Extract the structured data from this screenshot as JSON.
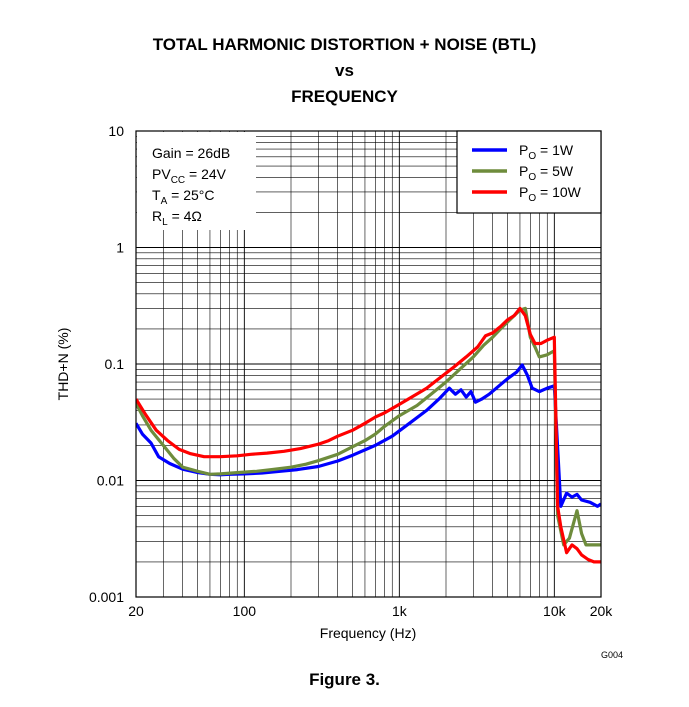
{
  "figure_caption": "Figure 3.",
  "chart_data": {
    "type": "line",
    "title_lines": [
      "TOTAL HARMONIC DISTORTION + NOISE (BTL)",
      "vs",
      "FREQUENCY"
    ],
    "xlabel": "Frequency (Hz)",
    "ylabel": "THD+N (%)",
    "x_scale": "log",
    "y_scale": "log",
    "xlim": [
      20,
      20000
    ],
    "ylim": [
      0.001,
      10
    ],
    "x_ticks": [
      {
        "value": 20,
        "label": "20"
      },
      {
        "value": 100,
        "label": "100"
      },
      {
        "value": 1000,
        "label": "1k"
      },
      {
        "value": 10000,
        "label": "10k"
      },
      {
        "value": 20000,
        "label": "20k"
      }
    ],
    "y_ticks": [
      {
        "value": 10,
        "label": "10"
      },
      {
        "value": 1,
        "label": "1"
      },
      {
        "value": 0.1,
        "label": "0.1"
      },
      {
        "value": 0.01,
        "label": "0.01"
      },
      {
        "value": 0.001,
        "label": "0.001"
      }
    ],
    "grid": true,
    "legend_position": "top-right",
    "conditions": [
      {
        "prefix": "Gain = 26dB",
        "sub": "",
        "suffix": ""
      },
      {
        "prefix": "PV",
        "sub": "CC",
        "suffix": " = 24V"
      },
      {
        "prefix": "T",
        "sub": "A",
        "suffix": " = 25°C"
      },
      {
        "prefix": "R",
        "sub": "L",
        "suffix": " = 4Ω"
      }
    ],
    "figure_id": "G004",
    "series": [
      {
        "name_prefix": "P",
        "name_sub": "O",
        "name_suffix": " = 1W",
        "color": "#0000ff",
        "points": [
          [
            20,
            0.031
          ],
          [
            22,
            0.025
          ],
          [
            25,
            0.021
          ],
          [
            28,
            0.016
          ],
          [
            33,
            0.014
          ],
          [
            40,
            0.0125
          ],
          [
            50,
            0.0117
          ],
          [
            60,
            0.0113
          ],
          [
            70,
            0.0112
          ],
          [
            80,
            0.0113
          ],
          [
            100,
            0.0114
          ],
          [
            130,
            0.0116
          ],
          [
            170,
            0.012
          ],
          [
            220,
            0.0124
          ],
          [
            300,
            0.0132
          ],
          [
            400,
            0.0147
          ],
          [
            500,
            0.0165
          ],
          [
            700,
            0.02
          ],
          [
            900,
            0.024
          ],
          [
            1200,
            0.032
          ],
          [
            1500,
            0.04
          ],
          [
            1800,
            0.05
          ],
          [
            2100,
            0.062
          ],
          [
            2300,
            0.055
          ],
          [
            2500,
            0.06
          ],
          [
            2700,
            0.052
          ],
          [
            2900,
            0.058
          ],
          [
            3100,
            0.047
          ],
          [
            3400,
            0.05
          ],
          [
            3800,
            0.055
          ],
          [
            4400,
            0.065
          ],
          [
            5000,
            0.075
          ],
          [
            5700,
            0.085
          ],
          [
            6200,
            0.098
          ],
          [
            6700,
            0.08
          ],
          [
            7200,
            0.062
          ],
          [
            8000,
            0.058
          ],
          [
            9000,
            0.062
          ],
          [
            10000,
            0.065
          ],
          [
            11000,
            0.006
          ],
          [
            12000,
            0.0078
          ],
          [
            13000,
            0.0072
          ],
          [
            14000,
            0.0076
          ],
          [
            15000,
            0.0068
          ],
          [
            17000,
            0.0065
          ],
          [
            19000,
            0.006
          ],
          [
            20000,
            0.0063
          ]
        ]
      },
      {
        "name_prefix": "P",
        "name_sub": "O",
        "name_suffix": " = 5W",
        "color": "#6e8c3c",
        "points": [
          [
            20,
            0.046
          ],
          [
            22,
            0.036
          ],
          [
            25,
            0.027
          ],
          [
            30,
            0.02
          ],
          [
            35,
            0.0155
          ],
          [
            40,
            0.013
          ],
          [
            50,
            0.012
          ],
          [
            60,
            0.0113
          ],
          [
            70,
            0.0114
          ],
          [
            90,
            0.0117
          ],
          [
            120,
            0.012
          ],
          [
            150,
            0.0124
          ],
          [
            200,
            0.013
          ],
          [
            250,
            0.0138
          ],
          [
            300,
            0.0148
          ],
          [
            400,
            0.0168
          ],
          [
            500,
            0.0195
          ],
          [
            600,
            0.022
          ],
          [
            700,
            0.025
          ],
          [
            800,
            0.029
          ],
          [
            1000,
            0.036
          ],
          [
            1300,
            0.044
          ],
          [
            1600,
            0.055
          ],
          [
            2000,
            0.07
          ],
          [
            2500,
            0.092
          ],
          [
            3000,
            0.115
          ],
          [
            3500,
            0.145
          ],
          [
            4000,
            0.17
          ],
          [
            4500,
            0.2
          ],
          [
            5000,
            0.23
          ],
          [
            5500,
            0.26
          ],
          [
            6000,
            0.29
          ],
          [
            6500,
            0.3
          ],
          [
            7000,
            0.17
          ],
          [
            7500,
            0.14
          ],
          [
            8000,
            0.115
          ],
          [
            9000,
            0.12
          ],
          [
            10000,
            0.13
          ],
          [
            10500,
            0.005
          ],
          [
            11500,
            0.0028
          ],
          [
            12500,
            0.0032
          ],
          [
            14000,
            0.0055
          ],
          [
            15000,
            0.0035
          ],
          [
            16000,
            0.0028
          ],
          [
            18000,
            0.0028
          ],
          [
            20000,
            0.0028
          ]
        ]
      },
      {
        "name_prefix": "P",
        "name_sub": "O",
        "name_suffix": " = 10W",
        "color": "#ff0000",
        "points": [
          [
            20,
            0.05
          ],
          [
            23,
            0.037
          ],
          [
            27,
            0.027
          ],
          [
            32,
            0.022
          ],
          [
            38,
            0.0185
          ],
          [
            45,
            0.017
          ],
          [
            55,
            0.016
          ],
          [
            70,
            0.016
          ],
          [
            90,
            0.0163
          ],
          [
            110,
            0.0168
          ],
          [
            140,
            0.0172
          ],
          [
            180,
            0.0178
          ],
          [
            230,
            0.0188
          ],
          [
            300,
            0.0205
          ],
          [
            350,
            0.022
          ],
          [
            400,
            0.024
          ],
          [
            500,
            0.027
          ],
          [
            600,
            0.031
          ],
          [
            700,
            0.035
          ],
          [
            800,
            0.038
          ],
          [
            1000,
            0.045
          ],
          [
            1200,
            0.052
          ],
          [
            1500,
            0.062
          ],
          [
            1800,
            0.075
          ],
          [
            2200,
            0.092
          ],
          [
            2700,
            0.115
          ],
          [
            3200,
            0.14
          ],
          [
            3600,
            0.175
          ],
          [
            4000,
            0.185
          ],
          [
            4500,
            0.21
          ],
          [
            5000,
            0.24
          ],
          [
            5500,
            0.26
          ],
          [
            6000,
            0.3
          ],
          [
            6500,
            0.26
          ],
          [
            7000,
            0.18
          ],
          [
            7500,
            0.15
          ],
          [
            8200,
            0.15
          ],
          [
            9000,
            0.16
          ],
          [
            10000,
            0.17
          ],
          [
            10500,
            0.006
          ],
          [
            11000,
            0.004
          ],
          [
            12000,
            0.0024
          ],
          [
            13000,
            0.0028
          ],
          [
            14000,
            0.0026
          ],
          [
            15000,
            0.0023
          ],
          [
            16500,
            0.0021
          ],
          [
            18000,
            0.002
          ],
          [
            20000,
            0.002
          ]
        ]
      }
    ]
  }
}
